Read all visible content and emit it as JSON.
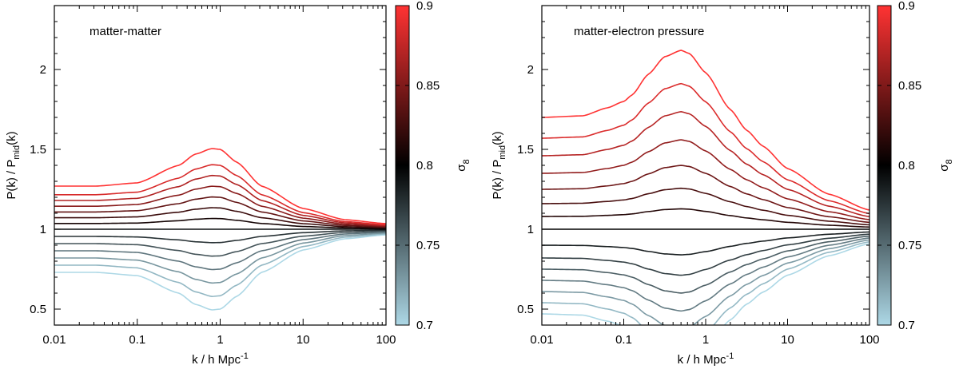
{
  "chart_data": [
    {
      "type": "line",
      "title": "matter-matter",
      "xlabel": {
        "base": "k / h Mpc",
        "sup": "-1"
      },
      "ylabel": {
        "main": "P(k) / P",
        "sub": "mid",
        "tail": "(k)"
      },
      "xscale": "log",
      "xlim": [
        0.01,
        100
      ],
      "ylim": [
        0.4,
        2.4
      ],
      "xticks": [
        {
          "value": 0.01,
          "label": "0.01"
        },
        {
          "value": 0.1,
          "label": "0.1"
        },
        {
          "value": 1,
          "label": "1"
        },
        {
          "value": 10,
          "label": "10"
        },
        {
          "value": 100,
          "label": "100"
        }
      ],
      "yticks": [
        {
          "value": 0.5,
          "label": "0.5"
        },
        {
          "value": 1,
          "label": "1"
        },
        {
          "value": 1.5,
          "label": "1.5"
        },
        {
          "value": 2,
          "label": "2"
        }
      ],
      "grid": false,
      "series_model": {
        "description": "ratio(k) = 1 + amp * shape(log10 k); shape piecewise-linear in log10 k",
        "shape_logk": [
          -2,
          -1.5,
          -1,
          -0.5,
          -0.3,
          -0.1,
          0,
          0.2,
          0.5,
          1,
          1.5,
          2
        ],
        "shape_val": [
          0.27,
          0.27,
          0.29,
          0.4,
          0.47,
          0.505,
          0.5,
          0.42,
          0.27,
          0.13,
          0.06,
          0.035
        ]
      },
      "series": [
        {
          "name": "sigma8=0.700",
          "amp": -1.0
        },
        {
          "name": "sigma8=0.717",
          "amp": -0.8333
        },
        {
          "name": "sigma8=0.733",
          "amp": -0.6667
        },
        {
          "name": "sigma8=0.750",
          "amp": -0.5
        },
        {
          "name": "sigma8=0.767",
          "amp": -0.3333
        },
        {
          "name": "sigma8=0.783",
          "amp": -0.1667
        },
        {
          "name": "sigma8=0.800",
          "amp": 0.0
        },
        {
          "name": "sigma8=0.817",
          "amp": 0.1333
        },
        {
          "name": "sigma8=0.833",
          "amp": 0.2667
        },
        {
          "name": "sigma8=0.850",
          "amp": 0.4
        },
        {
          "name": "sigma8=0.867",
          "amp": 0.5333
        },
        {
          "name": "sigma8=0.883",
          "amp": 0.6667
        },
        {
          "name": "sigma8=0.900",
          "amp": 0.8
        },
        {
          "name": "sigma8=0.917",
          "amp": 1.0
        }
      ],
      "colorbar": {
        "label_main": "σ",
        "label_sub": "8",
        "range": [
          0.7,
          0.9
        ],
        "ticks": [
          {
            "value": 0.7,
            "label": "0.7"
          },
          {
            "value": 0.75,
            "label": "0.75"
          },
          {
            "value": 0.8,
            "label": "0.8"
          },
          {
            "value": 0.85,
            "label": "0.85"
          },
          {
            "value": 0.9,
            "label": "0.9"
          }
        ],
        "colors": {
          "low": "#add8e6",
          "mid": "#000000",
          "high": "#ff3333"
        }
      }
    },
    {
      "type": "line",
      "title": "matter-electron pressure",
      "xlabel": {
        "base": "k / h Mpc",
        "sup": "-1"
      },
      "ylabel": {
        "main": "P(k) / P",
        "sub": "mid",
        "tail": "(k)"
      },
      "xscale": "log",
      "xlim": [
        0.01,
        100
      ],
      "ylim": [
        0.4,
        2.4
      ],
      "xticks": [
        {
          "value": 0.01,
          "label": "0.01"
        },
        {
          "value": 0.1,
          "label": "0.1"
        },
        {
          "value": 1,
          "label": "1"
        },
        {
          "value": 10,
          "label": "10"
        },
        {
          "value": 100,
          "label": "100"
        }
      ],
      "yticks": [
        {
          "value": 0.5,
          "label": "0.5"
        },
        {
          "value": 1,
          "label": "1"
        },
        {
          "value": 1.5,
          "label": "1.5"
        },
        {
          "value": 2,
          "label": "2"
        }
      ],
      "grid": false,
      "series_model": {
        "description": "ratio(k) = 1 + amp * shape(log10 k); shape piecewise-linear in log10 k",
        "shape_logk": [
          -2,
          -1.5,
          -1.2,
          -1,
          -0.9,
          -0.7,
          -0.5,
          -0.3,
          -0.2,
          0,
          0.3,
          0.5,
          0.7,
          1,
          1.5,
          2
        ],
        "shape_val": [
          0.7,
          0.71,
          0.76,
          0.8,
          0.84,
          0.97,
          1.08,
          1.12,
          1.1,
          0.98,
          0.75,
          0.62,
          0.52,
          0.38,
          0.22,
          0.12
        ]
      },
      "series": [
        {
          "name": "sigma8=0.700",
          "amp": -0.757
        },
        {
          "name": "sigma8=0.717",
          "amp": -0.657
        },
        {
          "name": "sigma8=0.733",
          "amp": -0.557
        },
        {
          "name": "sigma8=0.750",
          "amp": -0.457
        },
        {
          "name": "sigma8=0.767",
          "amp": -0.357
        },
        {
          "name": "sigma8=0.783",
          "amp": -0.257
        },
        {
          "name": "sigma8=0.800",
          "amp": -0.143
        },
        {
          "name": "sigma8=0.817",
          "amp": 0.0
        },
        {
          "name": "sigma8=0.833",
          "amp": 0.114
        },
        {
          "name": "sigma8=0.850",
          "amp": 0.229
        },
        {
          "name": "sigma8=0.867",
          "amp": 0.357
        },
        {
          "name": "sigma8=0.883",
          "amp": 0.5
        },
        {
          "name": "sigma8=0.900",
          "amp": 0.657
        },
        {
          "name": "sigma8=0.917",
          "amp": 0.814
        },
        {
          "name": "sigma8=0.933",
          "amp": 1.0
        }
      ],
      "colorbar": {
        "label_main": "σ",
        "label_sub": "8",
        "range": [
          0.7,
          0.9
        ],
        "ticks": [
          {
            "value": 0.7,
            "label": "0.7"
          },
          {
            "value": 0.75,
            "label": "0.75"
          },
          {
            "value": 0.8,
            "label": "0.8"
          },
          {
            "value": 0.85,
            "label": "0.85"
          },
          {
            "value": 0.9,
            "label": "0.9"
          }
        ],
        "colors": {
          "low": "#add8e6",
          "mid": "#000000",
          "high": "#ff3333"
        }
      }
    }
  ]
}
